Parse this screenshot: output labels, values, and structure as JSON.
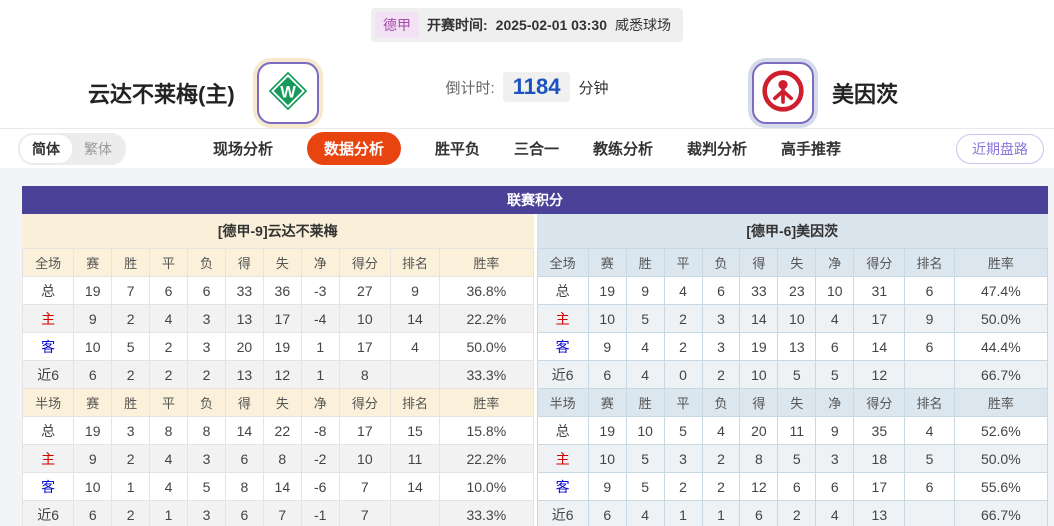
{
  "header": {
    "league_badge": "德甲",
    "kickoff_label": "开赛时间:",
    "kickoff_time": "2025-02-01 03:30",
    "venue": "威悉球场",
    "home_team": "云达不莱梅(主)",
    "away_team": "美因茨",
    "countdown_label": "倒计时:",
    "countdown_value": "1184",
    "countdown_unit": "分钟",
    "home_logo_icon": "werder-bremen-crest",
    "away_logo_icon": "mainz-crest"
  },
  "nav": {
    "lang_simplified": "简体",
    "lang_traditional": "繁体",
    "tabs": [
      "现场分析",
      "数据分析",
      "胜平负",
      "三合一",
      "教练分析",
      "裁判分析",
      "高手推荐"
    ],
    "active_tab": "数据分析",
    "recent_trend_button": "近期盘路"
  },
  "league_table": {
    "title": "联赛积分",
    "row_label_colors": {
      "home_row": "#d30000",
      "away_row": "#0b0bd3"
    },
    "home": {
      "team_header": "[德甲-9]云达不莱梅",
      "full": {
        "columns": [
          "全场",
          "赛",
          "胜",
          "平",
          "负",
          "得",
          "失",
          "净",
          "得分",
          "排名",
          "胜率"
        ],
        "rows": [
          [
            "总",
            "19",
            "7",
            "6",
            "6",
            "33",
            "36",
            "-3",
            "27",
            "9",
            "36.8%"
          ],
          [
            "主",
            "9",
            "2",
            "4",
            "3",
            "13",
            "17",
            "-4",
            "10",
            "14",
            "22.2%"
          ],
          [
            "客",
            "10",
            "5",
            "2",
            "3",
            "20",
            "19",
            "1",
            "17",
            "4",
            "50.0%"
          ],
          [
            "近6",
            "6",
            "2",
            "2",
            "2",
            "13",
            "12",
            "1",
            "8",
            "",
            "33.3%"
          ]
        ]
      },
      "half": {
        "columns": [
          "半场",
          "赛",
          "胜",
          "平",
          "负",
          "得",
          "失",
          "净",
          "得分",
          "排名",
          "胜率"
        ],
        "rows": [
          [
            "总",
            "19",
            "3",
            "8",
            "8",
            "14",
            "22",
            "-8",
            "17",
            "15",
            "15.8%"
          ],
          [
            "主",
            "9",
            "2",
            "4",
            "3",
            "6",
            "8",
            "-2",
            "10",
            "11",
            "22.2%"
          ],
          [
            "客",
            "10",
            "1",
            "4",
            "5",
            "8",
            "14",
            "-6",
            "7",
            "14",
            "10.0%"
          ],
          [
            "近6",
            "6",
            "2",
            "1",
            "3",
            "6",
            "7",
            "-1",
            "7",
            "",
            "33.3%"
          ]
        ]
      }
    },
    "away": {
      "team_header": "[德甲-6]美因茨",
      "full": {
        "columns": [
          "全场",
          "赛",
          "胜",
          "平",
          "负",
          "得",
          "失",
          "净",
          "得分",
          "排名",
          "胜率"
        ],
        "rows": [
          [
            "总",
            "19",
            "9",
            "4",
            "6",
            "33",
            "23",
            "10",
            "31",
            "6",
            "47.4%"
          ],
          [
            "主",
            "10",
            "5",
            "2",
            "3",
            "14",
            "10",
            "4",
            "17",
            "9",
            "50.0%"
          ],
          [
            "客",
            "9",
            "4",
            "2",
            "3",
            "19",
            "13",
            "6",
            "14",
            "6",
            "44.4%"
          ],
          [
            "近6",
            "6",
            "4",
            "0",
            "2",
            "10",
            "5",
            "5",
            "12",
            "",
            "66.7%"
          ]
        ]
      },
      "half": {
        "columns": [
          "半场",
          "赛",
          "胜",
          "平",
          "负",
          "得",
          "失",
          "净",
          "得分",
          "排名",
          "胜率"
        ],
        "rows": [
          [
            "总",
            "19",
            "10",
            "5",
            "4",
            "20",
            "11",
            "9",
            "35",
            "4",
            "52.6%"
          ],
          [
            "主",
            "10",
            "5",
            "3",
            "2",
            "8",
            "5",
            "3",
            "18",
            "5",
            "50.0%"
          ],
          [
            "客",
            "9",
            "5",
            "2",
            "2",
            "12",
            "6",
            "6",
            "17",
            "6",
            "55.6%"
          ],
          [
            "近6",
            "6",
            "4",
            "1",
            "1",
            "6",
            "2",
            "4",
            "13",
            "",
            "66.7%"
          ]
        ]
      }
    }
  },
  "colors": {
    "title_bar": "#4c4199",
    "home_header_bg": "#faf0d9",
    "away_header_bg": "#dae4ed",
    "active_tab_bg": "#e8440f",
    "countdown_value": "#1b52c0",
    "league_badge_text": "#a44ba8",
    "trend_pill_text": "#8a75e0"
  }
}
